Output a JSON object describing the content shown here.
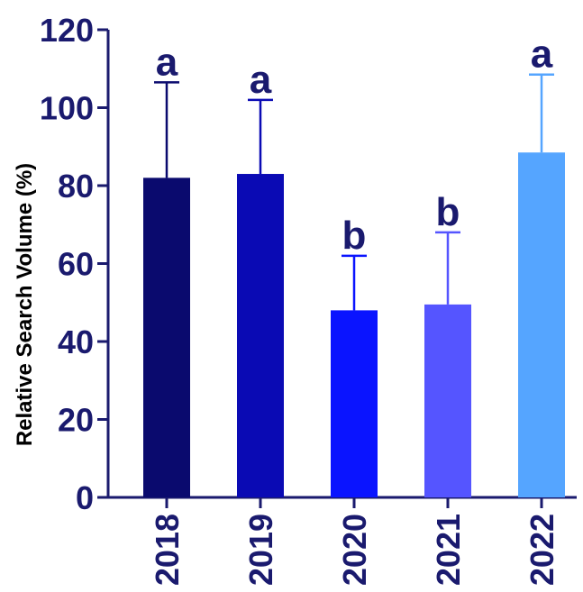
{
  "chart_data": {
    "type": "bar",
    "categories": [
      "2018",
      "2019",
      "2020",
      "2021",
      "2022"
    ],
    "values": [
      82,
      83,
      48,
      49.5,
      88.5
    ],
    "error_upper": [
      106.5,
      102,
      62,
      68,
      108.5
    ],
    "significance_letters": [
      "a",
      "a",
      "b",
      "b",
      "a"
    ],
    "bar_colors": [
      "#0a0a6e",
      "#0a0ab4",
      "#0a14ff",
      "#5555ff",
      "#55a5ff"
    ],
    "axis_color": "#1a1a6e",
    "xlabel": "",
    "ylabel": "Relative Search Volume (%)",
    "ylim": [
      0,
      120
    ],
    "yticks": [
      "0",
      "20",
      "40",
      "60",
      "80",
      "100",
      "120"
    ],
    "grid": false,
    "legend": "none"
  }
}
